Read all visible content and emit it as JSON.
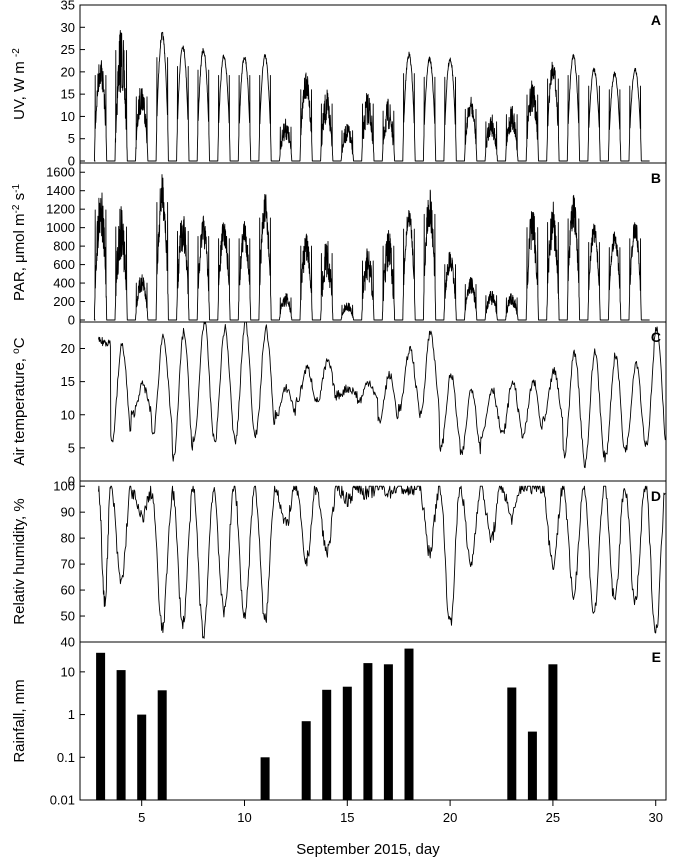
{
  "figure": {
    "xlabel": "September 2015, day"
  },
  "chart_data": [
    {
      "type": "line",
      "panel_letter": "A",
      "label": "UV",
      "unit": "W m",
      "exponent": "-2",
      "xlim": [
        2,
        30.5
      ],
      "ylim": [
        0,
        35
      ],
      "yticks": [
        0,
        5,
        10,
        15,
        20,
        25,
        30,
        35
      ],
      "ytick_labels": [
        "0",
        "5",
        "10",
        "15",
        "20",
        "25",
        "30",
        "35"
      ],
      "days": [
        3,
        4,
        5,
        6,
        7,
        8,
        9,
        10,
        11,
        12,
        13,
        14,
        15,
        16,
        17,
        18,
        19,
        20,
        21,
        22,
        23,
        24,
        25,
        26,
        27,
        28,
        29
      ],
      "daily_peak": [
        24,
        31,
        18,
        29,
        26.5,
        25.5,
        24,
        24,
        24,
        9.5,
        20,
        16,
        8.5,
        16,
        14,
        24.5,
        23.5,
        23.5,
        14.5,
        11,
        13,
        18.5,
        23,
        24,
        21,
        20,
        21
      ],
      "noise": [
        0.3,
        0.5,
        0.4,
        0.1,
        0.1,
        0.1,
        0.1,
        0.1,
        0.1,
        0.5,
        0.3,
        0.5,
        0.5,
        0.5,
        0.5,
        0.1,
        0.1,
        0.1,
        0.3,
        0.5,
        0.5,
        0.4,
        0.2,
        0.15,
        0.1,
        0.1,
        0.1
      ]
    },
    {
      "type": "line",
      "panel_letter": "B",
      "label": "PAR",
      "unit": "μmol m",
      "exponent": "-2",
      "unit2": " s",
      "exponent2": "-1",
      "xlim": [
        2,
        30.5
      ],
      "ylim": [
        0,
        1700
      ],
      "yticks": [
        0,
        200,
        400,
        600,
        800,
        1000,
        1200,
        1400,
        1600
      ],
      "ytick_labels": [
        "0",
        "200",
        "400",
        "600",
        "800",
        "1000",
        "1200",
        "1400",
        "1600"
      ],
      "days": [
        3,
        4,
        5,
        6,
        7,
        8,
        9,
        10,
        11,
        12,
        13,
        14,
        15,
        16,
        17,
        18,
        19,
        20,
        21,
        22,
        23,
        24,
        25,
        26,
        27,
        28,
        29
      ],
      "daily_peak": [
        1490,
        1260,
        500,
        1590,
        1200,
        1130,
        1100,
        1100,
        1380,
        300,
        1000,
        900,
        200,
        800,
        1000,
        1230,
        1430,
        750,
        480,
        330,
        300,
        1250,
        1320,
        1370,
        1050,
        980,
        1100
      ],
      "noise": [
        0.4,
        0.5,
        0.4,
        0.3,
        0.4,
        0.3,
        0.3,
        0.3,
        0.3,
        0.5,
        0.4,
        0.5,
        0.5,
        0.5,
        0.5,
        0.2,
        0.3,
        0.3,
        0.4,
        0.5,
        0.5,
        0.4,
        0.4,
        0.3,
        0.2,
        0.2,
        0.2
      ]
    },
    {
      "type": "line",
      "panel_letter": "C",
      "label": "Air temperature,",
      "unit": "C",
      "degree_sign": "o",
      "xlim": [
        2,
        30.5
      ],
      "ylim": [
        0,
        24
      ],
      "yticks": [
        0,
        5,
        10,
        15,
        20
      ],
      "ytick_labels": [
        "0",
        "5",
        "10",
        "15",
        "20"
      ],
      "days": [
        3,
        4,
        5,
        6,
        7,
        8,
        9,
        10,
        11,
        12,
        13,
        14,
        15,
        16,
        17,
        18,
        19,
        20,
        21,
        22,
        23,
        24,
        25,
        26,
        27,
        28,
        29,
        30
      ],
      "daily_min": [
        21,
        6,
        10,
        7,
        3.5,
        6,
        6,
        6,
        7,
        10,
        12,
        12,
        13,
        12,
        9,
        11,
        10,
        5,
        4,
        7,
        7,
        7,
        9,
        4,
        2.5,
        3.5,
        5,
        5.5
      ],
      "daily_max": [
        21,
        20.5,
        14.5,
        22,
        22.5,
        24,
        23,
        24,
        23,
        14,
        17,
        18,
        14,
        15,
        16,
        20,
        22.5,
        16,
        14,
        14,
        15,
        15,
        16.5,
        19.5,
        19.5,
        19,
        18,
        23
      ]
    },
    {
      "type": "line",
      "panel_letter": "D",
      "label": "Relativ humidity, %",
      "xlim": [
        2,
        30.5
      ],
      "ylim": [
        40,
        102
      ],
      "yticks": [
        40,
        50,
        60,
        70,
        80,
        90,
        100
      ],
      "ytick_labels": [
        "40",
        "50",
        "60",
        "70",
        "80",
        "90",
        "100"
      ],
      "days": [
        3,
        4,
        5,
        6,
        7,
        8,
        9,
        10,
        11,
        12,
        13,
        14,
        15,
        16,
        17,
        18,
        19,
        20,
        21,
        22,
        23,
        24,
        25,
        26,
        27,
        28,
        29,
        30
      ],
      "daily_min": [
        55,
        63,
        88,
        45,
        47,
        43,
        51,
        50,
        48,
        85,
        71,
        75,
        95,
        97,
        98,
        98,
        75,
        47,
        70,
        80,
        88,
        100,
        70,
        58,
        51,
        56,
        55,
        44
      ],
      "daily_max": [
        100,
        100,
        98,
        97,
        98,
        99,
        99,
        100,
        100,
        100,
        100,
        98,
        100,
        100,
        100,
        100,
        100,
        100,
        100,
        100,
        100,
        100,
        100,
        100,
        100,
        100,
        100,
        100
      ]
    },
    {
      "type": "bar",
      "panel_letter": "E",
      "label": "Rainfall, mm",
      "scale": "log",
      "ylim": [
        0.01,
        50
      ],
      "yticks": [
        0.01,
        0.1,
        1,
        10
      ],
      "ytick_labels": [
        "0.01",
        "0.1",
        "1",
        "10"
      ],
      "days": [
        3,
        4,
        5,
        6,
        11,
        13,
        14,
        15,
        16,
        17,
        18,
        23,
        24,
        25
      ],
      "values": [
        28,
        11,
        1.0,
        3.7,
        0.1,
        0.7,
        3.8,
        4.5,
        16,
        15,
        35,
        4.3,
        0.4,
        15
      ]
    }
  ],
  "x_ticks": [
    5,
    10,
    15,
    20,
    25,
    30
  ],
  "x_tick_labels": [
    "5",
    "10",
    "15",
    "20",
    "25",
    "30"
  ]
}
